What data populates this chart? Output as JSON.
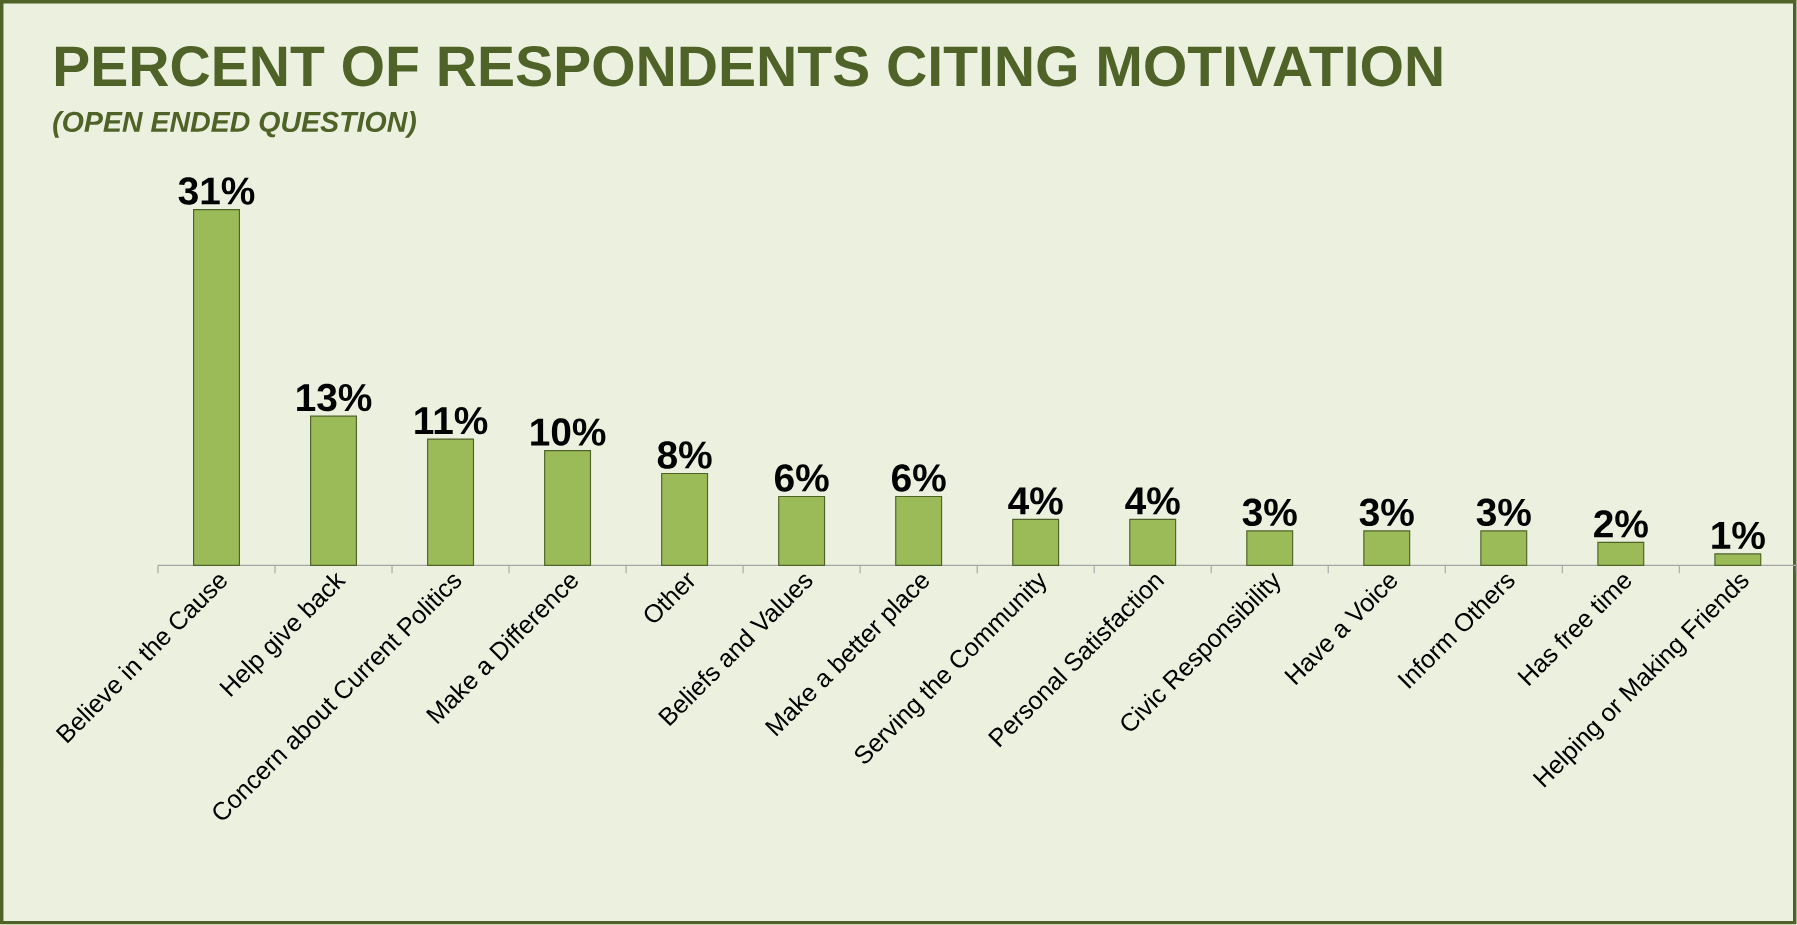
{
  "chart_data": {
    "type": "bar",
    "title": "PERCENT OF RESPONDENTS CITING MOTIVATION",
    "subtitle": "(OPEN ENDED QUESTION)",
    "categories": [
      "Believe in the Cause",
      "Help give back",
      "Concern about Current Politics",
      "Make a Difference",
      "Other",
      "Beliefs and Values",
      "Make a better place",
      "Serving the Community",
      "Personal Satisfaction",
      "Civic Responsibility",
      "Have a Voice",
      "Inform Others",
      "Has free time",
      "Helping or Making Friends"
    ],
    "values": [
      31,
      13,
      11,
      10,
      8,
      6,
      6,
      4,
      4,
      3,
      3,
      3,
      2,
      1
    ],
    "value_labels": [
      "31%",
      "13%",
      "11%",
      "10%",
      "8%",
      "6%",
      "6%",
      "4%",
      "4%",
      "3%",
      "3%",
      "3%",
      "2%",
      "1%"
    ],
    "color": "#9bbb59"
  }
}
